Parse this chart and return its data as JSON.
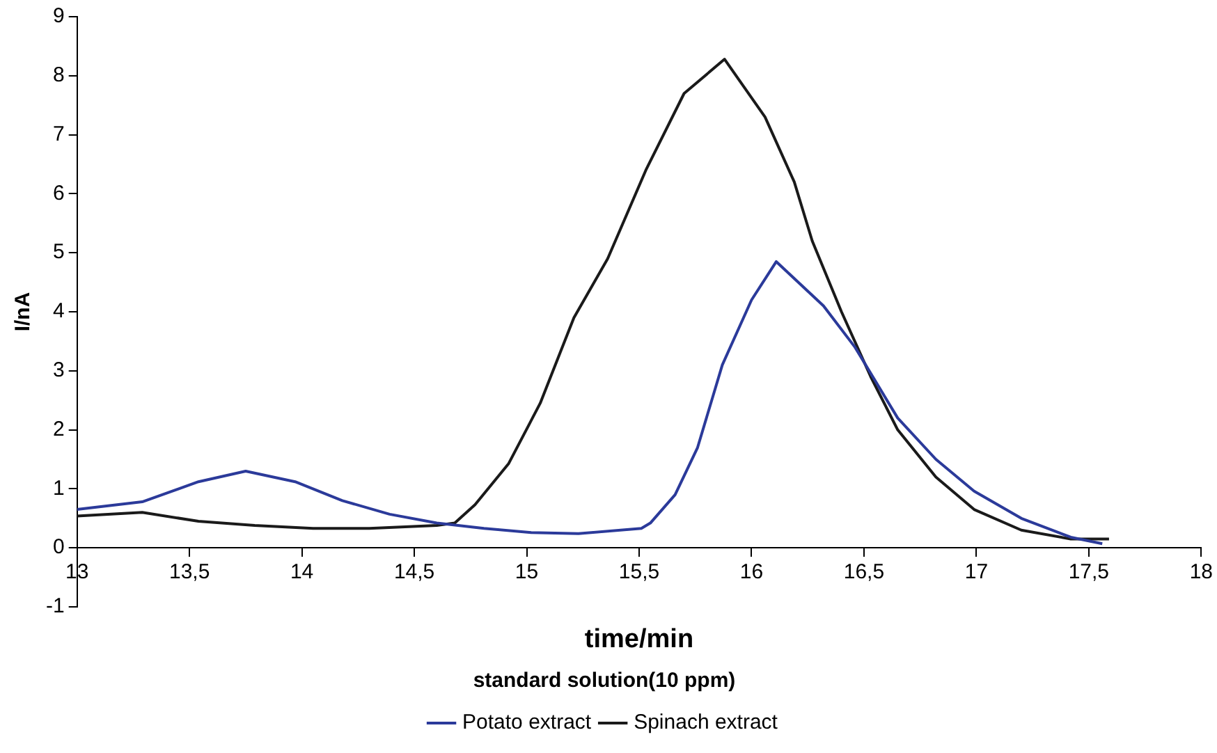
{
  "chart_data": {
    "type": "line",
    "xlabel": "time/min",
    "ylabel": "I/nA",
    "annotations": [
      "standard solution(10 ppm)"
    ],
    "xlim": [
      13,
      18
    ],
    "xticks": [
      13,
      {
        "value": 13.5,
        "label": "13,5"
      },
      14,
      {
        "value": 14.5,
        "label": "14,5"
      },
      15,
      {
        "value": 15.5,
        "label": "15,5"
      },
      16,
      {
        "value": 16.5,
        "label": "16,5"
      },
      17,
      {
        "value": 17.5,
        "label": "17,5"
      },
      18
    ],
    "ylim": [
      -1,
      9
    ],
    "yticks": [
      -1,
      0,
      1,
      2,
      3,
      4,
      5,
      6,
      7,
      8,
      9
    ],
    "grid": false,
    "legend": "bottom",
    "marker": "none",
    "line_style": "solid",
    "series": [
      {
        "name": "Potato extract",
        "color": "#2b3a9a",
        "x": [
          13.0,
          13.29,
          13.54,
          13.75,
          13.97,
          14.18,
          14.39,
          14.6,
          14.81,
          15.02,
          15.23,
          15.51,
          15.55,
          15.66,
          15.76,
          15.87,
          16.0,
          16.11,
          16.32,
          16.46,
          16.65,
          16.82,
          16.99,
          17.2,
          17.42,
          17.56
        ],
        "values": [
          0.65,
          0.78,
          1.12,
          1.3,
          1.12,
          0.8,
          0.57,
          0.42,
          0.33,
          0.26,
          0.24,
          0.33,
          0.42,
          0.9,
          1.7,
          3.1,
          4.2,
          4.85,
          4.1,
          3.4,
          2.2,
          1.5,
          0.96,
          0.5,
          0.18,
          0.07
        ]
      },
      {
        "name": "Spinach extract",
        "color": "#1a1a1a",
        "x": [
          13.0,
          13.29,
          13.54,
          13.79,
          14.05,
          14.3,
          14.6,
          14.68,
          14.77,
          14.92,
          15.06,
          15.21,
          15.36,
          15.53,
          15.7,
          15.88,
          16.06,
          16.19,
          16.27,
          16.4,
          16.53,
          16.65,
          16.82,
          16.99,
          17.2,
          17.42,
          17.59
        ],
        "values": [
          0.54,
          0.6,
          0.45,
          0.38,
          0.33,
          0.33,
          0.38,
          0.42,
          0.73,
          1.43,
          2.45,
          3.9,
          4.9,
          6.4,
          7.7,
          8.28,
          7.3,
          6.2,
          5.2,
          4.0,
          2.9,
          2.0,
          1.2,
          0.65,
          0.3,
          0.15,
          0.15
        ]
      }
    ]
  }
}
